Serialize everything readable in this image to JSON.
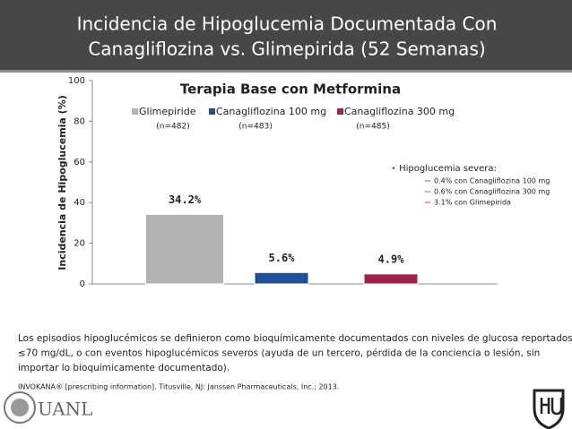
{
  "header": {
    "title_lines": [
      "Incidencia de Hipoglucemia Documentada Con",
      "Canagliflozina vs. Glimepirida (52 Semanas)"
    ]
  },
  "chart_data": {
    "type": "bar",
    "title": "Terapia Base con Metformina",
    "y_label": "Incidencia de Hipoglucemia (%)",
    "ylim": [
      0,
      100
    ],
    "yticks": [
      0,
      20,
      40,
      60,
      80,
      100
    ],
    "grid": false,
    "series": [
      {
        "name": "Glimepiride",
        "sample": "(n=482)",
        "color": "#b3b3b3",
        "values": [
          34.2
        ],
        "value_labels": [
          "34.2%"
        ]
      },
      {
        "name": "Canagliflozina 100 mg",
        "sample": "(n=483)",
        "color": "#1f4e9a",
        "values": [
          5.6
        ],
        "value_labels": [
          "5.6%"
        ]
      },
      {
        "name": "Canagliflozina  300 mg",
        "sample": "(n=485)",
        "color": "#a3204a",
        "values": [
          4.9
        ],
        "value_labels": [
          "4.9%"
        ]
      }
    ],
    "annotation": {
      "heading": "Hipoglucemia severa:",
      "items": [
        "0.4% con Canagliflozina 100 mg",
        "0.6% con Canagliflozina 300 mg",
        "3.1% con  Glimepirida"
      ]
    }
  },
  "footnote": [
    "Los episodios hipoglucémicos se definieron como bioquímicamente documentados con niveles de glucosa reportados",
    "≤70 mg/dL, o con eventos hipoglucémicos severos (ayuda de un tercero, pérdida de la conciencia o lesión, sin",
    "importar lo bioquímicamente documentado)."
  ],
  "reference": "INVOKANA® [prescribing information]. Titusville, NJ: Janssen Pharmaceuticals, Inc.; 2013.",
  "logo_text": "UANL"
}
